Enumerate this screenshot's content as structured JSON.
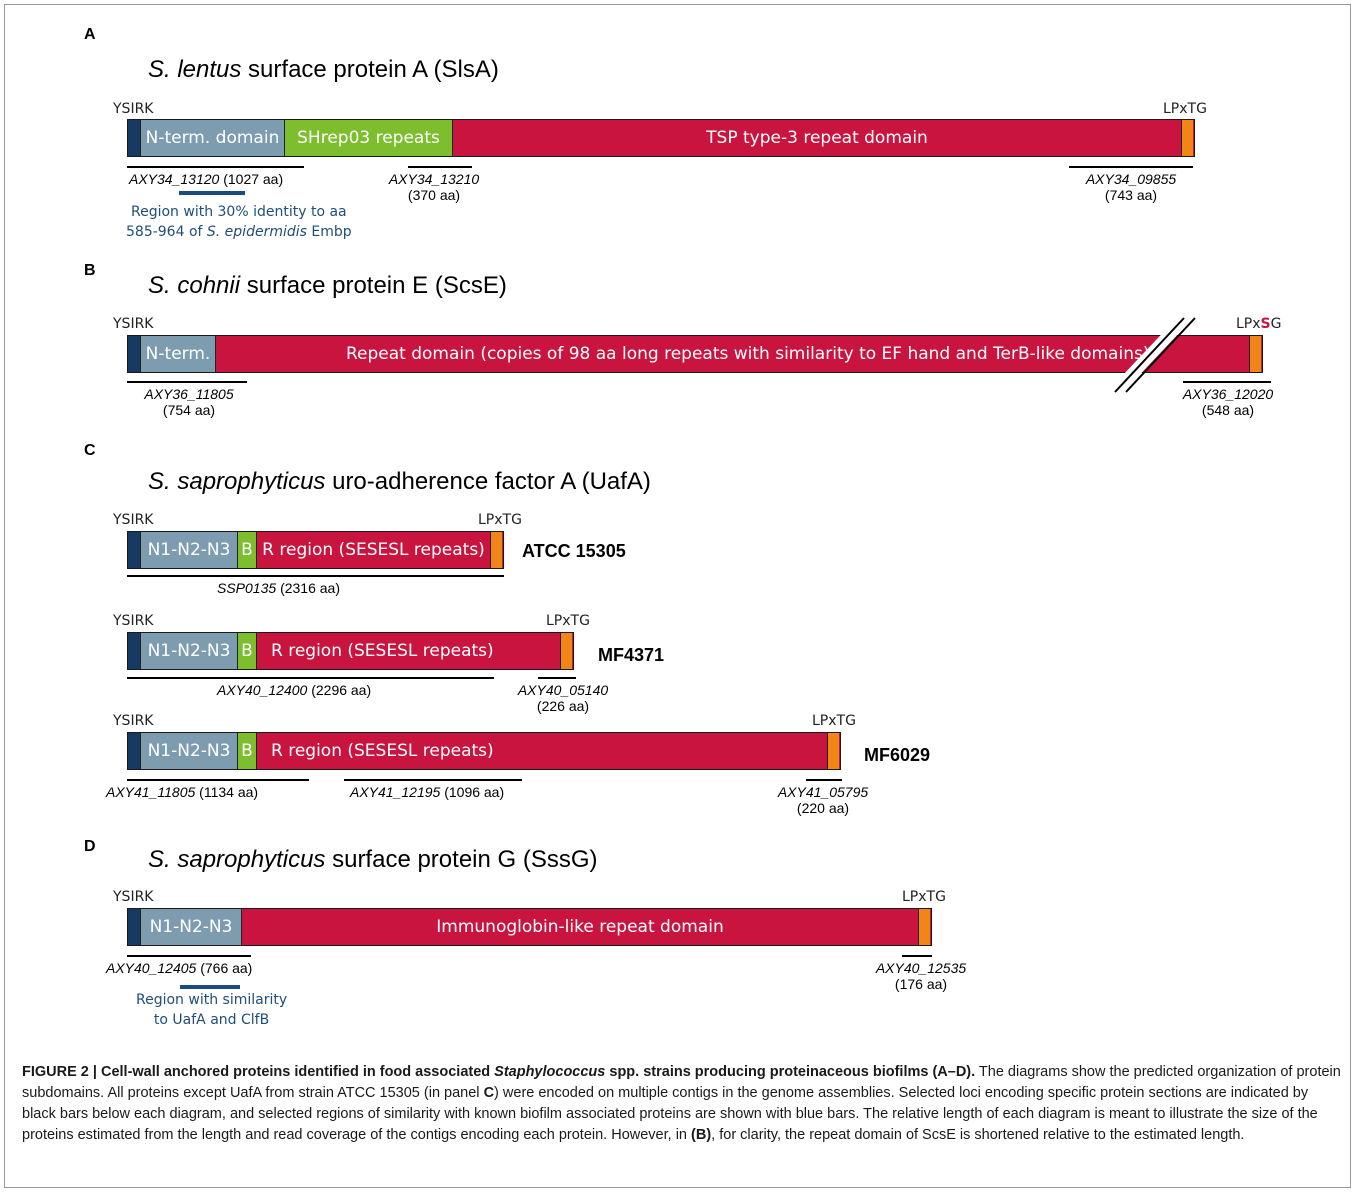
{
  "panelA": {
    "letter": "A",
    "title": "S. lentus surface protein A (SlsA)",
    "ysirk": "YSIRK",
    "lpxtg": "LPxTG",
    "seg_nterm": "N-term. domain",
    "seg_shrep": "SHrep03 repeats",
    "seg_tsp": "TSP type-3 repeat domain",
    "locus1": "AXY34_13120",
    "locus1_size": "(1027 aa)",
    "locus2": "AXY34_13210",
    "locus2_size": "(370 aa)",
    "locus3": "AXY34_09855",
    "locus3_size": "(743 aa)",
    "note_line1": "Region with 30% identity to aa",
    "note_line2a": "585-964 of ",
    "note_line2b": "S. epidermidis",
    "note_line2c": " Embp"
  },
  "panelB": {
    "letter": "B",
    "title": "S. cohnii surface protein E (ScsE)",
    "ysirk": "YSIRK",
    "lpx_a": "LPx",
    "lpx_b": "S",
    "lpx_c": "G",
    "seg_nterm": "N-term.",
    "seg_repeat": "Repeat domain (copies of 98 aa long repeats with similarity to EF hand and TerB-like domains)",
    "locus1": "AXY36_11805",
    "locus1_size": "(754 aa)",
    "locus2": "AXY36_12020",
    "locus2_size": "(548 aa)"
  },
  "panelC": {
    "letter": "C",
    "title": "S. saprophyticus uro-adherence factor A (UafA)",
    "ysirk": "YSIRK",
    "lpxtg": "LPxTG",
    "seg_n": "N1-N2-N3",
    "seg_b": "B",
    "seg_r": "R region (SESESL repeats)",
    "strain1": "ATCC 15305",
    "strain2": "MF4371",
    "strain3": "MF6029",
    "c1_locus": "SSP0135",
    "c1_size": "(2316 aa)",
    "c2_locus1": "AXY40_12400",
    "c2_size1": "(2296 aa)",
    "c2_locus2": "AXY40_05140",
    "c2_size2": "(226 aa)",
    "c3_locus1": "AXY41_11805",
    "c3_size1": "(1134 aa)",
    "c3_locus2": "AXY41_12195",
    "c3_size2": "(1096 aa)",
    "c3_locus3": "AXY41_05795",
    "c3_size3": "(220 aa)"
  },
  "panelD": {
    "letter": "D",
    "title": "S. saprophyticus surface protein G (SssG)",
    "ysirk": "YSIRK",
    "lpxtg": "LPxTG",
    "seg_n": "N1-N2-N3",
    "seg_ig": "Immunoglobin-like repeat domain",
    "locus1": "AXY40_12405",
    "locus1_size": "(766 aa)",
    "locus2": "AXY40_12535",
    "locus2_size": "(176 aa)",
    "note_line1": "Region with similarity",
    "note_line2": "to UafA and ClfB"
  },
  "caption": {
    "p1": "FIGURE 2 | Cell-wall anchored proteins identified in food associated ",
    "p2": "Staphylococcus",
    "p3": " spp. strains producing proteinaceous biofilms (A–D).",
    "p4": " The diagrams show the predicted organization of protein subdomains. All proteins except UafA from strain ATCC 15305 (in panel ",
    "p5": "C",
    "p6": ") were encoded on multiple contigs in the genome assemblies. Selected loci encoding specific protein sections are indicated by black bars below each diagram, and selected regions of similarity with known biofilm associated proteins are shown with blue bars. The relative length of each diagram is meant to illustrate the size of the proteins estimated from the length and read coverage of the contigs encoding each protein. However, in ",
    "p7": "(B)",
    "p8": ", for clarity, the repeat domain of ScsE is shortened relative to the estimated length."
  },
  "colors": {
    "ysirk": "#173a63",
    "nterm": "#7e9cb0",
    "green": "#7dbe2e",
    "red": "#c8143f",
    "lpxtg": "#f28517",
    "blue_bar": "#1b4a7e"
  }
}
